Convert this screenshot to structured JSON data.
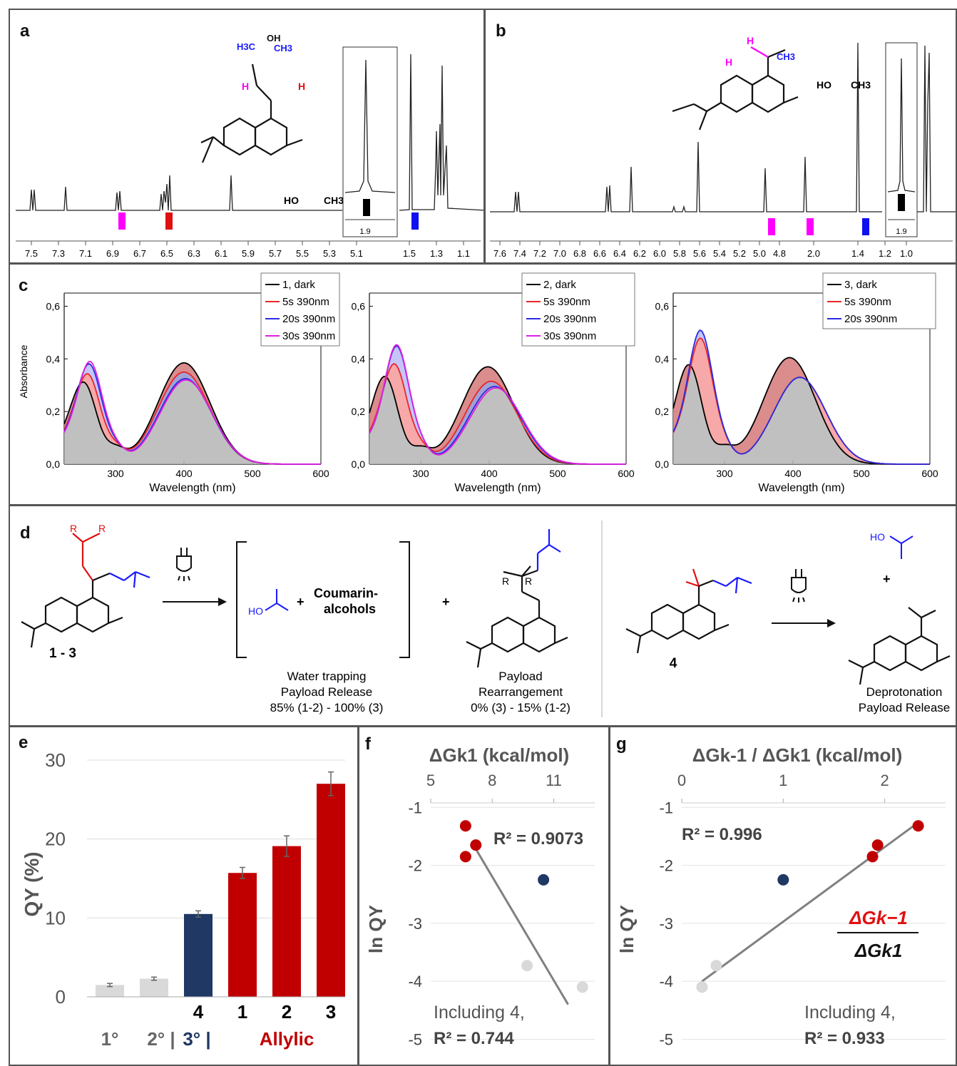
{
  "panels": {
    "a": {
      "label": "a",
      "xticks": [
        "7.5",
        "7.3",
        "7.1",
        "6.9",
        "6.7",
        "6.5",
        "6.3",
        "6.1",
        "5.9",
        "5.7",
        "5.5",
        "5.3",
        "5.1",
        "1.5",
        "1.3",
        "1.1"
      ],
      "inset_value": "1.9",
      "structure_labels": {
        "h3c": "H3C",
        "oh": "OH",
        "ch3": "CH3",
        "h": "H",
        "ho": "HO"
      }
    },
    "b": {
      "label": "b",
      "xticks": [
        "7.6",
        "7.4",
        "7.2",
        "7.0",
        "6.8",
        "6.6",
        "6.4",
        "6.2",
        "6.0",
        "5.8",
        "5.6",
        "5.4",
        "5.2",
        "5.0",
        "4.8",
        "2.0",
        "1.4",
        "1.2",
        "1.0"
      ],
      "inset_value": "1.9",
      "structure_labels": {
        "h": "H",
        "ch3": "CH3",
        "ho": "HO"
      }
    },
    "c": {
      "label": "c",
      "ylabel": "Absorbance",
      "xlabel": "Wavelength (nm)",
      "yticks": [
        "0,0",
        "0,2",
        "0,4",
        "0,6"
      ],
      "xticks": [
        "300",
        "400",
        "500",
        "600"
      ],
      "legends": [
        [
          "1, dark",
          "5s 390nm",
          "20s 390nm",
          "30s 390nm"
        ],
        [
          "2, dark",
          "5s 390nm",
          "20s 390nm",
          "30s 390nm"
        ],
        [
          "3, dark",
          "5s 390nm",
          "20s 390nm"
        ]
      ],
      "series_colors": [
        "#000000",
        "#e8262b",
        "#2a2ae0",
        "#e020e0"
      ]
    },
    "d": {
      "label": "d",
      "r_label": "R",
      "start_label": "1 - 3",
      "coumarin_label": "Coumarin-",
      "alcohols_label": "alcohols",
      "plus": "+",
      "ho": "HO",
      "release_lines": [
        "Water trapping",
        "Payload Release",
        "85% (1-2) - 100% (3)"
      ],
      "rearr_lines": [
        "Payload",
        "Rearrangement",
        "0% (3) - 15% (1-2)"
      ],
      "compound4": "4",
      "deprot_lines": [
        "Deprotonation",
        "Payload Release"
      ]
    },
    "e": {
      "label": "e",
      "ylabel": "QY (%)",
      "yticks": [
        "0",
        "10",
        "20",
        "30"
      ],
      "bar_labels": [
        "",
        "",
        "4",
        "1",
        "2",
        "3"
      ],
      "categories": [
        "1°",
        "2° |",
        "3° |",
        "Allylic"
      ]
    },
    "f": {
      "label": "f",
      "title": "ΔGk1 (kcal/mol)",
      "xticks": [
        "5",
        "8",
        "11"
      ],
      "ylabel": "ln QY",
      "yticks": [
        "-1",
        "-2",
        "-3",
        "-4",
        "-5"
      ],
      "r2": "R² = 0.9073",
      "including": "Including 4,",
      "r2_including": "R² = 0.744"
    },
    "g": {
      "label": "g",
      "title": "ΔGk-1 / ΔGk1 (kcal/mol)",
      "xticks": [
        "0",
        "1",
        "2"
      ],
      "ylabel": "ln QY",
      "yticks": [
        "-1",
        "-2",
        "-3",
        "-4",
        "-5"
      ],
      "r2": "R² = 0.996",
      "including": "Including 4,",
      "r2_including": "R² = 0.933",
      "fraction_num": "ΔGk−1",
      "fraction_den": "ΔGk1"
    }
  },
  "chart_data": [
    {
      "type": "line",
      "panel": "c-1",
      "xlabel": "Wavelength (nm)",
      "ylabel": "Absorbance",
      "xlim": [
        225,
        600
      ],
      "ylim": [
        0,
        0.65
      ],
      "series": [
        {
          "name": "1, dark",
          "peaks": [
            [
              255,
              0.29
            ],
            [
              400,
              0.385
            ]
          ]
        },
        {
          "name": "5s 390nm",
          "peaks": [
            [
              260,
              0.33
            ],
            [
              400,
              0.35
            ]
          ]
        },
        {
          "name": "20s 390nm",
          "peaks": [
            [
              262,
              0.37
            ],
            [
              402,
              0.325
            ]
          ]
        },
        {
          "name": "30s 390nm",
          "peaks": [
            [
              263,
              0.38
            ],
            [
              403,
              0.32
            ]
          ]
        }
      ]
    },
    {
      "type": "line",
      "panel": "c-2",
      "xlabel": "Wavelength (nm)",
      "ylabel": "Absorbance",
      "xlim": [
        225,
        600
      ],
      "ylim": [
        0,
        0.65
      ],
      "series": [
        {
          "name": "2, dark",
          "peaks": [
            [
              250,
              0.3
            ],
            [
              398,
              0.37
            ]
          ]
        },
        {
          "name": "5s 390nm",
          "peaks": [
            [
              262,
              0.37
            ],
            [
              403,
              0.315
            ]
          ]
        },
        {
          "name": "20s 390nm",
          "peaks": [
            [
              265,
              0.44
            ],
            [
              408,
              0.295
            ]
          ]
        },
        {
          "name": "30s 390nm",
          "peaks": [
            [
              265,
              0.445
            ],
            [
              410,
              0.29
            ]
          ]
        }
      ]
    },
    {
      "type": "line",
      "panel": "c-3",
      "xlabel": "Wavelength (nm)",
      "ylabel": "Absorbance",
      "xlim": [
        225,
        600
      ],
      "ylim": [
        0,
        0.65
      ],
      "series": [
        {
          "name": "3, dark",
          "peaks": [
            [
              250,
              0.345
            ],
            [
              395,
              0.405
            ]
          ]
        },
        {
          "name": "5s 390nm",
          "peaks": [
            [
              265,
              0.47
            ],
            [
              410,
              0.33
            ]
          ]
        },
        {
          "name": "20s 390nm",
          "peaks": [
            [
              265,
              0.5
            ],
            [
              410,
              0.33
            ]
          ]
        }
      ]
    },
    {
      "type": "bar",
      "panel": "e",
      "ylabel": "QY (%)",
      "ylim": [
        0,
        30
      ],
      "categories": [
        "1°",
        "2°",
        "4",
        "1",
        "2",
        "3"
      ],
      "values": [
        1.5,
        2.3,
        10.5,
        15.7,
        19.1,
        27.0
      ],
      "errors": [
        0.2,
        0.2,
        0.4,
        0.7,
        1.3,
        1.5
      ],
      "colors": [
        "#d9d9d9",
        "#d9d9d9",
        "#1f3864",
        "#c00000",
        "#c00000",
        "#c00000"
      ]
    },
    {
      "type": "scatter",
      "panel": "f",
      "xlabel": "ΔGk1 (kcal/mol)",
      "ylabel": "ln QY",
      "xlim": [
        5,
        13
      ],
      "ylim": [
        -5.4,
        -0.8
      ],
      "points": [
        {
          "x": 6.7,
          "y": -1.32,
          "group": "allylic"
        },
        {
          "x": 7.2,
          "y": -1.65,
          "group": "allylic"
        },
        {
          "x": 6.7,
          "y": -1.85,
          "group": "allylic"
        },
        {
          "x": 10.5,
          "y": -2.25,
          "group": "tertiary"
        },
        {
          "x": 9.7,
          "y": -3.73,
          "group": "secondary"
        },
        {
          "x": 12.4,
          "y": -4.1,
          "group": "primary"
        }
      ],
      "fit": {
        "x": [
          7.0,
          11.7
        ],
        "y": [
          -1.6,
          -4.4
        ]
      },
      "r2": 0.9073
    },
    {
      "type": "scatter",
      "panel": "g",
      "xlabel": "ΔGk-1 / ΔGk1 (kcal/mol)",
      "ylabel": "ln QY",
      "xlim": [
        0,
        2.6
      ],
      "ylim": [
        -5.4,
        -0.8
      ],
      "points": [
        {
          "x": 2.33,
          "y": -1.32,
          "group": "allylic"
        },
        {
          "x": 1.93,
          "y": -1.65,
          "group": "allylic"
        },
        {
          "x": 1.88,
          "y": -1.85,
          "group": "allylic"
        },
        {
          "x": 1.0,
          "y": -2.25,
          "group": "tertiary"
        },
        {
          "x": 0.34,
          "y": -3.73,
          "group": "secondary"
        },
        {
          "x": 0.2,
          "y": -4.1,
          "group": "primary"
        }
      ],
      "fit": {
        "x": [
          0.2,
          2.3
        ],
        "y": [
          -4.0,
          -1.3
        ]
      },
      "r2": 0.996
    }
  ]
}
